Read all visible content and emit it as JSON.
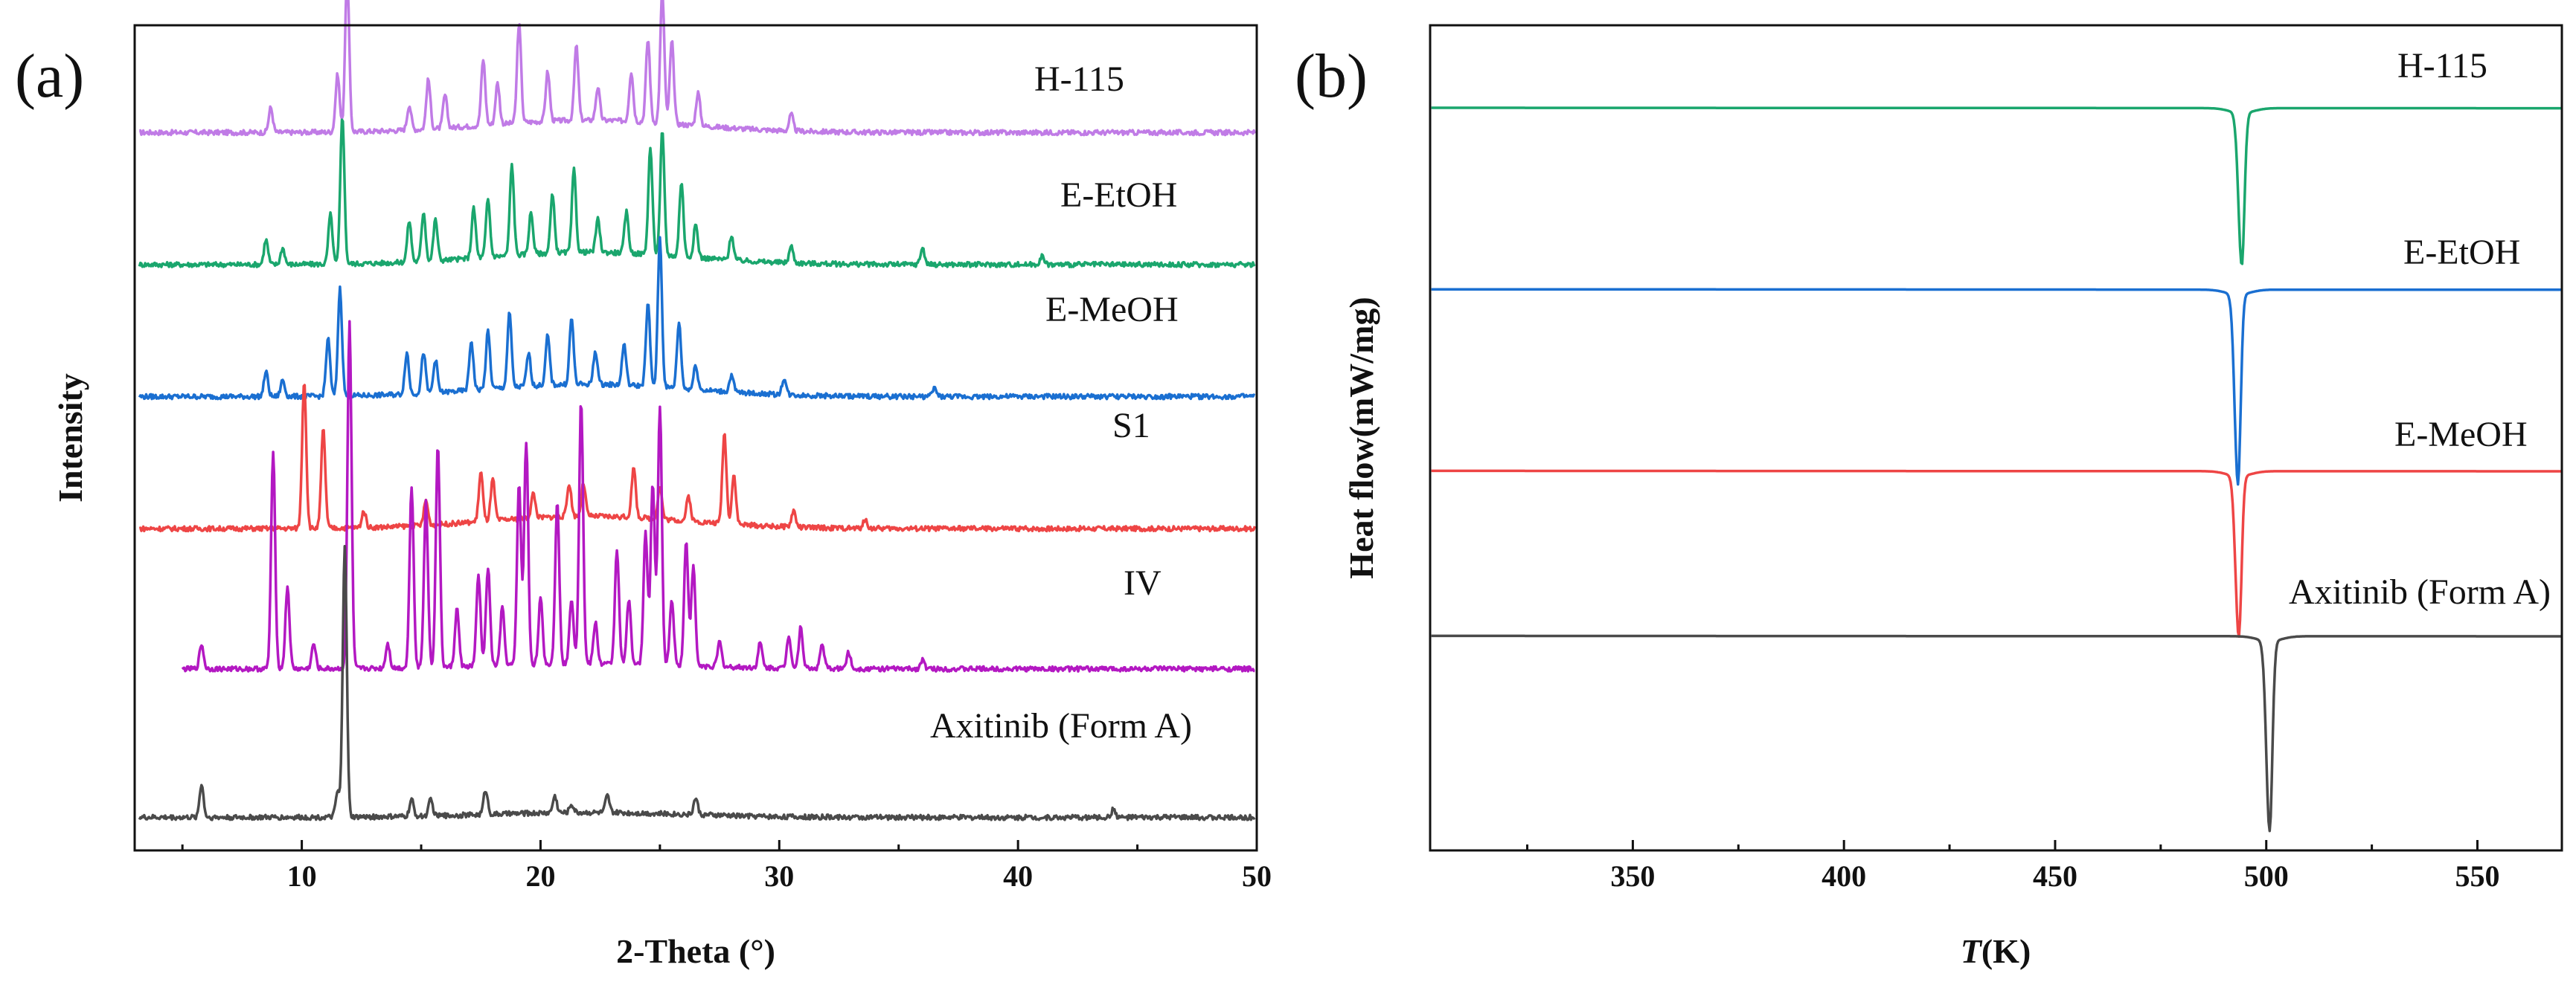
{
  "figure": {
    "left_letter": "(a)",
    "right_letter": "(b)"
  },
  "chart_data": [
    {
      "type": "line",
      "panel": "(a)",
      "title": "",
      "xlabel": "2-Theta (°)",
      "ylabel": "Intensity",
      "xlim": [
        3,
        50
      ],
      "xticks": [
        10,
        20,
        30,
        40,
        50
      ],
      "ylim": [
        0,
        100
      ],
      "y_axis_ticks": false,
      "series": [
        {
          "name": "H-115",
          "color": "#c07be6",
          "baseline": 87,
          "peaks": [
            [
              8.7,
              3
            ],
            [
              11.5,
              7
            ],
            [
              11.9,
              19
            ],
            [
              14.5,
              3
            ],
            [
              15.3,
              6
            ],
            [
              16,
              4
            ],
            [
              17.6,
              8
            ],
            [
              18.2,
              5
            ],
            [
              19.1,
              12
            ],
            [
              20.3,
              6
            ],
            [
              21.5,
              9
            ],
            [
              22.4,
              4
            ],
            [
              23.8,
              6
            ],
            [
              24.5,
              10
            ],
            [
              25.1,
              16
            ],
            [
              25.5,
              10
            ],
            [
              26.6,
              4
            ],
            [
              30.5,
              2
            ]
          ]
        },
        {
          "name": "E-EtOH",
          "color": "#1aa66d",
          "baseline": 71,
          "peaks": [
            [
              8.5,
              3
            ],
            [
              9.2,
              2
            ],
            [
              11.2,
              6
            ],
            [
              11.7,
              18
            ],
            [
              14.5,
              5
            ],
            [
              15.1,
              6
            ],
            [
              15.6,
              5
            ],
            [
              17.2,
              6
            ],
            [
              17.8,
              7
            ],
            [
              18.8,
              11
            ],
            [
              19.6,
              5
            ],
            [
              20.5,
              7
            ],
            [
              21.4,
              10
            ],
            [
              22.4,
              4
            ],
            [
              23.6,
              5
            ],
            [
              24.6,
              13
            ],
            [
              25.1,
              15
            ],
            [
              25.9,
              9
            ],
            [
              26.5,
              4
            ],
            [
              28,
              3
            ],
            [
              30.5,
              2
            ],
            [
              36,
              2
            ],
            [
              41,
              1
            ]
          ]
        },
        {
          "name": "E-MeOH",
          "color": "#1a6fd1",
          "baseline": 55,
          "peaks": [
            [
              8.5,
              3
            ],
            [
              9.2,
              2
            ],
            [
              11.1,
              7
            ],
            [
              11.6,
              13
            ],
            [
              14.4,
              5
            ],
            [
              15.1,
              5
            ],
            [
              15.6,
              4
            ],
            [
              17.1,
              6
            ],
            [
              17.8,
              7
            ],
            [
              18.7,
              9
            ],
            [
              19.5,
              4
            ],
            [
              20.3,
              6
            ],
            [
              21.3,
              8
            ],
            [
              22.3,
              4
            ],
            [
              23.5,
              5
            ],
            [
              24.5,
              10
            ],
            [
              25,
              18
            ],
            [
              25.8,
              8
            ],
            [
              26.5,
              3
            ],
            [
              28,
              2
            ],
            [
              30.2,
              2
            ],
            [
              36.5,
              1
            ]
          ]
        },
        {
          "name": "S1",
          "color": "#ee4545",
          "baseline": 39,
          "peaks": [
            [
              10.1,
              18
            ],
            [
              10.9,
              12
            ],
            [
              12.6,
              2
            ],
            [
              15.2,
              3
            ],
            [
              17.5,
              6
            ],
            [
              18,
              5
            ],
            [
              19.7,
              3
            ],
            [
              21.2,
              4
            ],
            [
              21.8,
              4
            ],
            [
              23.9,
              6
            ],
            [
              25,
              4
            ],
            [
              26.2,
              3
            ],
            [
              27.7,
              11
            ],
            [
              28.1,
              6
            ],
            [
              30.6,
              2
            ],
            [
              33.6,
              1
            ]
          ]
        },
        {
          "name": "IV",
          "color": "#b318c2",
          "baseline": 22,
          "peaks": [
            [
              5.8,
              3
            ],
            [
              8.8,
              26
            ],
            [
              9.4,
              10
            ],
            [
              10.5,
              3
            ],
            [
              12,
              42
            ],
            [
              13.6,
              3
            ],
            [
              14.6,
              22
            ],
            [
              15.2,
              20
            ],
            [
              15.7,
              27
            ],
            [
              16.5,
              7
            ],
            [
              17.4,
              11
            ],
            [
              17.8,
              12
            ],
            [
              18.4,
              7
            ],
            [
              19.1,
              22
            ],
            [
              19.4,
              27
            ],
            [
              20,
              8
            ],
            [
              20.7,
              20
            ],
            [
              21.3,
              8
            ],
            [
              21.7,
              32
            ],
            [
              22.3,
              5
            ],
            [
              23.2,
              14
            ],
            [
              23.7,
              8
            ],
            [
              24.4,
              16
            ],
            [
              24.7,
              22
            ],
            [
              25,
              31
            ],
            [
              25.5,
              8
            ],
            [
              26.1,
              15
            ],
            [
              26.4,
              12
            ],
            [
              27.5,
              3
            ],
            [
              29.2,
              3
            ],
            [
              30.4,
              4
            ],
            [
              30.9,
              5
            ],
            [
              31.8,
              3
            ],
            [
              32.9,
              2
            ],
            [
              36,
              1
            ]
          ]
        },
        {
          "name": "Axitinib (Form A)",
          "color": "#4a4a4a",
          "baseline": 4,
          "peaks": [
            [
              5.8,
              4
            ],
            [
              11.5,
              3
            ],
            [
              11.8,
              33
            ],
            [
              14.6,
              2
            ],
            [
              15.4,
              2
            ],
            [
              17.7,
              3
            ],
            [
              20.6,
              2
            ],
            [
              21.3,
              1
            ],
            [
              22.8,
              2
            ],
            [
              26.5,
              2
            ],
            [
              44,
              1
            ]
          ]
        }
      ]
    },
    {
      "type": "line",
      "panel": "(b)",
      "title": "",
      "xlabel": "T(K)",
      "xlabel_italic": "T",
      "xlabel_rest": "(K)",
      "ylabel": "Heat flow(mW/mg)",
      "xlim": [
        302,
        570
      ],
      "xticks": [
        350,
        400,
        450,
        500,
        550
      ],
      "xtick_labels": [
        "350",
        "400",
        "450",
        "500",
        "550"
      ],
      "ylim": [
        0,
        100
      ],
      "y_axis_ticks": false,
      "series": [
        {
          "name": "H-115",
          "color": "#1aa66d",
          "baseline": 90,
          "peak_T": 494.2,
          "peak_depth": 18.5
        },
        {
          "name": "E-EtOH",
          "color": "#1a6fd1",
          "baseline": 68,
          "peak_T": 493.3,
          "peak_depth": 23
        },
        {
          "name": "E-MeOH",
          "color": "#ee4545",
          "baseline": 46,
          "peak_T": 493.5,
          "peak_depth": 19.5
        },
        {
          "name": "Axitinib (Form A)",
          "color": "#4a4a4a",
          "baseline": 26,
          "peak_T": 500.8,
          "peak_depth": 23
        }
      ]
    }
  ]
}
